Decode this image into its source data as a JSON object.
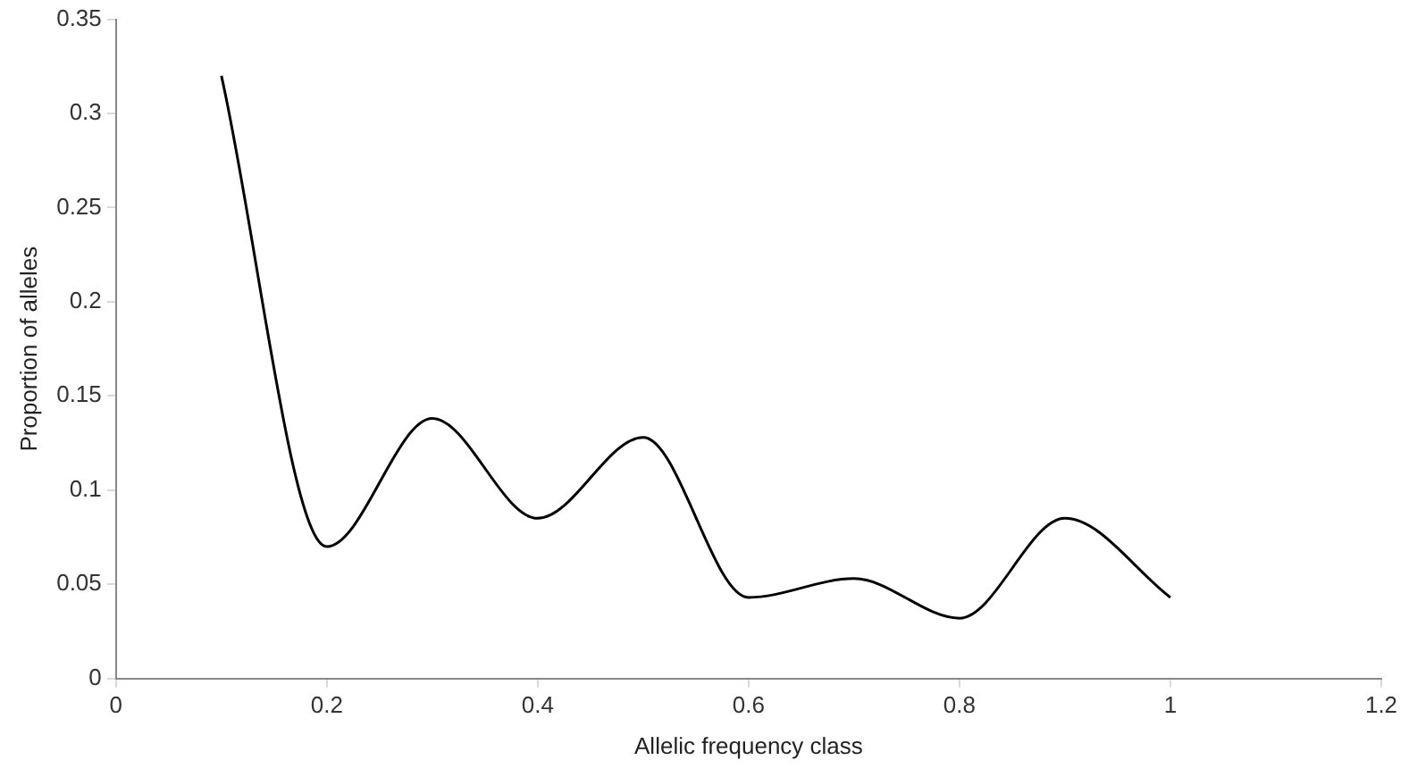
{
  "chart_data": {
    "type": "line",
    "xlabel": "Allelic frequency class",
    "ylabel": "Proportion of alleles",
    "x": [
      0.1,
      0.2,
      0.3,
      0.4,
      0.5,
      0.6,
      0.7,
      0.8,
      0.9,
      1.0
    ],
    "series": [
      {
        "color": "#000000",
        "values": [
          0.32,
          0.07,
          0.138,
          0.085,
          0.128,
          0.043,
          0.053,
          0.032,
          0.085,
          0.043
        ]
      }
    ],
    "xlim": [
      0,
      1.2
    ],
    "xticks": [
      0,
      0.2,
      0.4,
      0.6,
      0.8,
      1,
      1.2
    ],
    "ylim": [
      0,
      0.35
    ],
    "yticks": [
      0,
      0.05,
      0.1,
      0.15,
      0.2,
      0.25,
      0.3,
      0.35
    ],
    "grid": false,
    "legend": false,
    "marker": "none",
    "line_style": "solid"
  }
}
